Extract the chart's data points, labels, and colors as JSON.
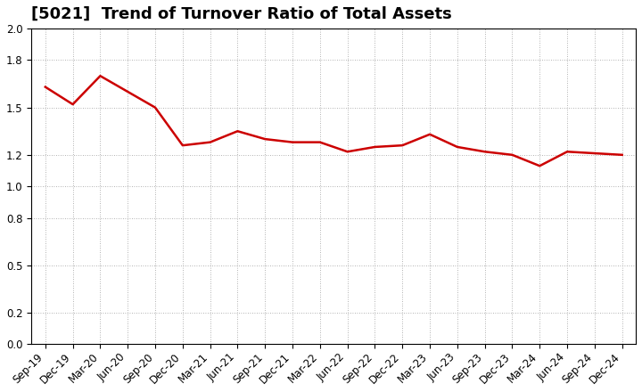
{
  "title": "[5021]  Trend of Turnover Ratio of Total Assets",
  "x_labels": [
    "Sep-19",
    "Dec-19",
    "Mar-20",
    "Jun-20",
    "Sep-20",
    "Dec-20",
    "Mar-21",
    "Jun-21",
    "Sep-21",
    "Dec-21",
    "Mar-22",
    "Jun-22",
    "Sep-22",
    "Dec-22",
    "Mar-23",
    "Jun-23",
    "Sep-23",
    "Dec-23",
    "Mar-24",
    "Jun-24",
    "Sep-24",
    "Dec-24"
  ],
  "values": [
    1.63,
    1.52,
    1.7,
    1.6,
    1.5,
    1.26,
    1.28,
    1.35,
    1.3,
    1.28,
    1.28,
    1.22,
    1.25,
    1.26,
    1.33,
    1.25,
    1.22,
    1.2,
    1.13,
    1.22,
    1.21,
    1.2
  ],
  "line_color": "#cc0000",
  "ylim": [
    0.0,
    2.0
  ],
  "yticks": [
    0.0,
    0.2,
    0.5,
    0.8,
    1.0,
    1.2,
    1.5,
    1.8,
    2.0
  ],
  "grid_color": "#999999",
  "bg_color": "#ffffff",
  "title_fontsize": 13,
  "tick_fontsize": 8.5,
  "line_width": 1.8
}
